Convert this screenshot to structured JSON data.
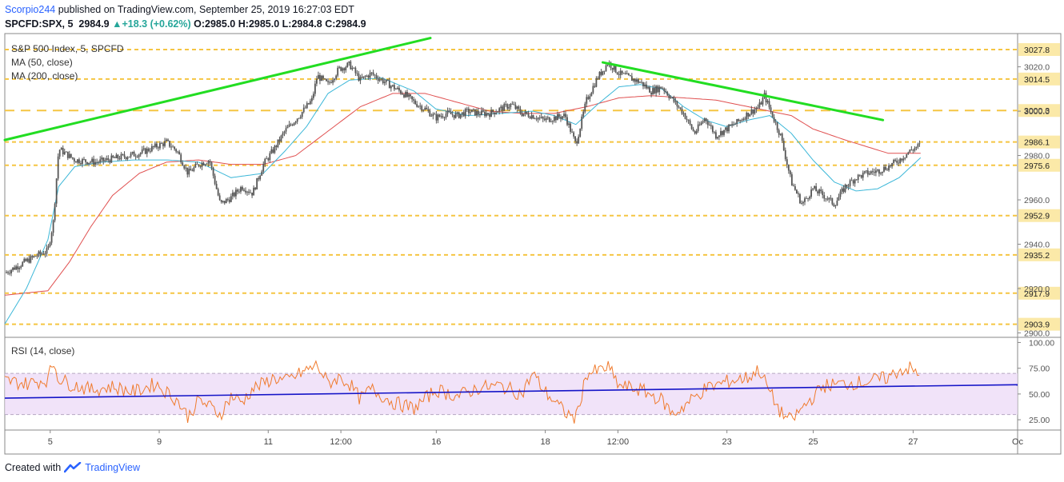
{
  "header": {
    "author": "Scorpio244",
    "published": " published on TradingView.com, September 25, 2019 16:27:03 EDT",
    "symbol": "SPCFD:SPX, 5",
    "last": "2984.9",
    "change": "+18.3 (+0.62%)",
    "o_label": "O:",
    "o_value": "2985.0",
    "h_label": "H:",
    "h_value": "2985.0",
    "l_label": "L:",
    "l_value": "2984.8",
    "c_label": "C:",
    "c_value": "2984.9"
  },
  "legend": {
    "title": "S&P 500 Index, 5, SPCFD",
    "ma50": "MA (50, close)",
    "ma200": "MA (200, close)",
    "rsi": "RSI (14, close)"
  },
  "footer": {
    "prefix": "Created with",
    "brand": "TradingView"
  },
  "colors": {
    "candle": "#555555",
    "ma50": "#3cb7d8",
    "ma200": "#e05050",
    "levels": "#f5c542",
    "trend": "#22dd22",
    "rsi": "#f07b2e",
    "rsi_trend": "#1515c8",
    "rsi_band": "#ecd9f7"
  },
  "chart_data": [
    {
      "type": "candlestick",
      "x_tick_labels": [
        "5",
        "9",
        "11",
        "12:00",
        "16",
        "18",
        "12:00",
        "23",
        "25",
        "27",
        "Oc"
      ],
      "y_tick_labels": [
        2900,
        2920,
        2940,
        2960,
        2980,
        3000,
        3020
      ],
      "ylim": [
        2898,
        3035
      ],
      "price_levels": [
        {
          "value": 3027.8,
          "label": "3027.8"
        },
        {
          "value": 3014.5,
          "label": "3014.5"
        },
        {
          "value": 3000.3,
          "label": "3000.3",
          "style": "long-dash"
        },
        {
          "value": 2986.1,
          "label": "2986.1"
        },
        {
          "value": 2975.6,
          "label": "2975.6"
        },
        {
          "value": 2952.9,
          "label": "2952.9"
        },
        {
          "value": 2935.2,
          "label": "2935.2"
        },
        {
          "value": 2917.9,
          "label": "2917.9"
        },
        {
          "value": 2903.9,
          "label": "2903.9"
        }
      ],
      "price_path": [
        [
          0,
          2927
        ],
        [
          3,
          2931
        ],
        [
          6,
          2935
        ],
        [
          8,
          2937
        ],
        [
          9,
          2950
        ],
        [
          10,
          2983
        ],
        [
          13,
          2978
        ],
        [
          17,
          2977
        ],
        [
          21,
          2979
        ],
        [
          25,
          2981
        ],
        [
          28,
          2984
        ],
        [
          30,
          2986
        ],
        [
          32,
          2982
        ],
        [
          34,
          2972
        ],
        [
          36,
          2976
        ],
        [
          38,
          2978
        ],
        [
          40,
          2958
        ],
        [
          42,
          2961
        ],
        [
          44,
          2966
        ],
        [
          46,
          2963
        ],
        [
          48,
          2976
        ],
        [
          50,
          2983
        ],
        [
          52,
          2991
        ],
        [
          55,
          2999
        ],
        [
          57,
          3005
        ],
        [
          58,
          3016
        ],
        [
          60,
          3012
        ],
        [
          62,
          3019
        ],
        [
          64,
          3021
        ],
        [
          66,
          3014
        ],
        [
          68,
          3017
        ],
        [
          70,
          3014
        ],
        [
          72,
          3011
        ],
        [
          74,
          3008
        ],
        [
          76,
          3004
        ],
        [
          78,
          3001
        ],
        [
          80,
          2997
        ],
        [
          82,
          2999
        ],
        [
          84,
          2998
        ],
        [
          86,
          3000
        ],
        [
          88,
          2999
        ],
        [
          90,
          2999
        ],
        [
          92,
          3001
        ],
        [
          94,
          3003
        ],
        [
          96,
          2999
        ],
        [
          98,
          2998
        ],
        [
          100,
          2996
        ],
        [
          102,
          2997
        ],
        [
          104,
          2998
        ],
        [
          106,
          2985
        ],
        [
          108,
          3005
        ],
        [
          110,
          3015
        ],
        [
          112,
          3022
        ],
        [
          114,
          3017
        ],
        [
          116,
          3015
        ],
        [
          118,
          3013
        ],
        [
          120,
          3009
        ],
        [
          122,
          3011
        ],
        [
          124,
          3005
        ],
        [
          126,
          2999
        ],
        [
          128,
          2990
        ],
        [
          130,
          2997
        ],
        [
          132,
          2989
        ],
        [
          134,
          2992
        ],
        [
          136,
          2995
        ],
        [
          138,
          2999
        ],
        [
          140,
          3002
        ],
        [
          141,
          3007
        ],
        [
          142,
          3001
        ],
        [
          144,
          2989
        ],
        [
          146,
          2968
        ],
        [
          148,
          2958
        ],
        [
          150,
          2965
        ],
        [
          152,
          2962
        ],
        [
          154,
          2958
        ],
        [
          156,
          2966
        ],
        [
          158,
          2970
        ],
        [
          160,
          2972
        ],
        [
          162,
          2973
        ],
        [
          164,
          2975
        ],
        [
          166,
          2978
        ],
        [
          168,
          2982
        ],
        [
          170,
          2984.9
        ]
      ],
      "ma50_path": [
        [
          0,
          2904
        ],
        [
          4,
          2920
        ],
        [
          8,
          2942
        ],
        [
          10,
          2966
        ],
        [
          13,
          2975
        ],
        [
          18,
          2977
        ],
        [
          24,
          2978
        ],
        [
          30,
          2978
        ],
        [
          36,
          2977
        ],
        [
          42,
          2970
        ],
        [
          48,
          2972
        ],
        [
          52,
          2982
        ],
        [
          56,
          2993
        ],
        [
          60,
          3008
        ],
        [
          64,
          3014
        ],
        [
          70,
          3015
        ],
        [
          76,
          3009
        ],
        [
          80,
          3001
        ],
        [
          86,
          2998
        ],
        [
          92,
          2999
        ],
        [
          98,
          3000
        ],
        [
          102,
          2998
        ],
        [
          106,
          2994
        ],
        [
          110,
          3003
        ],
        [
          114,
          3011
        ],
        [
          118,
          3012
        ],
        [
          122,
          3010
        ],
        [
          126,
          3002
        ],
        [
          130,
          2996
        ],
        [
          134,
          2993
        ],
        [
          138,
          2996
        ],
        [
          142,
          2998
        ],
        [
          146,
          2990
        ],
        [
          150,
          2978
        ],
        [
          154,
          2968
        ],
        [
          158,
          2964
        ],
        [
          162,
          2965
        ],
        [
          166,
          2970
        ],
        [
          170,
          2979
        ]
      ],
      "ma200_path": [
        [
          0,
          2917
        ],
        [
          8,
          2919
        ],
        [
          12,
          2932
        ],
        [
          16,
          2948
        ],
        [
          20,
          2962
        ],
        [
          25,
          2972
        ],
        [
          30,
          2977
        ],
        [
          36,
          2978
        ],
        [
          42,
          2976
        ],
        [
          48,
          2976
        ],
        [
          54,
          2980
        ],
        [
          60,
          2991
        ],
        [
          66,
          3002
        ],
        [
          72,
          3008
        ],
        [
          78,
          3008
        ],
        [
          84,
          3004
        ],
        [
          90,
          3000
        ],
        [
          96,
          2999
        ],
        [
          102,
          2999
        ],
        [
          108,
          3002
        ],
        [
          114,
          3006
        ],
        [
          120,
          3007
        ],
        [
          126,
          3006
        ],
        [
          132,
          3005
        ],
        [
          138,
          3002
        ],
        [
          142,
          3000
        ],
        [
          146,
          2998
        ],
        [
          150,
          2992
        ],
        [
          156,
          2987
        ],
        [
          160,
          2984
        ],
        [
          164,
          2981
        ],
        [
          170,
          2981
        ]
      ],
      "trendlines": [
        {
          "from": [
            0,
            2987
          ],
          "to": [
            79,
            3033
          ]
        },
        {
          "from": [
            111,
            3022
          ],
          "to": [
            163,
            2996
          ]
        }
      ]
    },
    {
      "type": "line",
      "name": "RSI (14, close)",
      "y_tick_labels": [
        25,
        50,
        75,
        100
      ],
      "ylim": [
        15,
        105
      ],
      "band": [
        30,
        70
      ],
      "rsi_path": [
        [
          0,
          63
        ],
        [
          4,
          60
        ],
        [
          8,
          64
        ],
        [
          9,
          82
        ],
        [
          10,
          65
        ],
        [
          12,
          60
        ],
        [
          16,
          54
        ],
        [
          20,
          57
        ],
        [
          24,
          52
        ],
        [
          28,
          60
        ],
        [
          32,
          44
        ],
        [
          34,
          28
        ],
        [
          36,
          44
        ],
        [
          38,
          38
        ],
        [
          40,
          30
        ],
        [
          42,
          48
        ],
        [
          44,
          42
        ],
        [
          46,
          55
        ],
        [
          48,
          60
        ],
        [
          50,
          66
        ],
        [
          52,
          62
        ],
        [
          56,
          73
        ],
        [
          58,
          78
        ],
        [
          60,
          60
        ],
        [
          62,
          66
        ],
        [
          64,
          60
        ],
        [
          66,
          45
        ],
        [
          68,
          55
        ],
        [
          72,
          42
        ],
        [
          76,
          36
        ],
        [
          80,
          54
        ],
        [
          84,
          48
        ],
        [
          88,
          56
        ],
        [
          92,
          58
        ],
        [
          96,
          50
        ],
        [
          98,
          70
        ],
        [
          100,
          54
        ],
        [
          104,
          32
        ],
        [
          106,
          26
        ],
        [
          108,
          70
        ],
        [
          110,
          72
        ],
        [
          112,
          76
        ],
        [
          114,
          58
        ],
        [
          118,
          54
        ],
        [
          122,
          44
        ],
        [
          124,
          30
        ],
        [
          126,
          38
        ],
        [
          130,
          55
        ],
        [
          134,
          62
        ],
        [
          138,
          66
        ],
        [
          140,
          74
        ],
        [
          142,
          52
        ],
        [
          144,
          32
        ],
        [
          146,
          24
        ],
        [
          148,
          36
        ],
        [
          152,
          58
        ],
        [
          156,
          60
        ],
        [
          160,
          62
        ],
        [
          164,
          66
        ],
        [
          166,
          73
        ],
        [
          168,
          75
        ],
        [
          170,
          66
        ]
      ],
      "rsi_trendline": {
        "from": [
          0,
          46
        ],
        "to": [
          188,
          59
        ]
      }
    }
  ]
}
